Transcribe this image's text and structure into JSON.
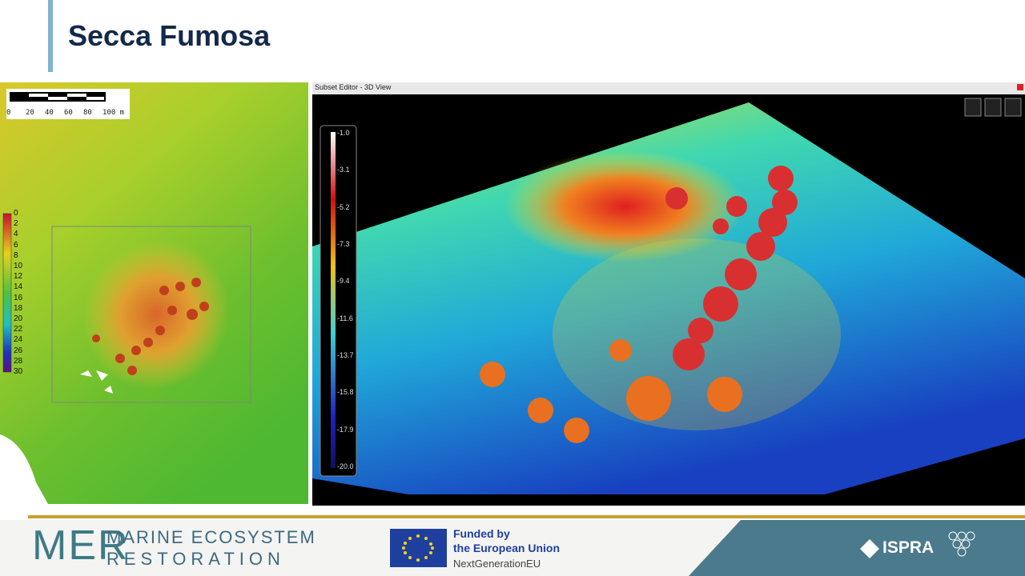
{
  "header": {
    "title": "Secca Fumosa"
  },
  "left_panel": {
    "scale_labels": [
      "0",
      "20",
      "40",
      "60",
      "80",
      "100 m"
    ],
    "legend_labels": [
      "0",
      "2",
      "4",
      "6",
      "8",
      "10",
      "12",
      "14",
      "16",
      "18",
      "20",
      "22",
      "24",
      "26",
      "28",
      "30"
    ]
  },
  "right_panel": {
    "window_title": "Subset Editor - 3D View",
    "legend_labels": [
      "-1.0",
      "-3.1",
      "-5.2",
      "-7.3",
      "-9.4",
      "-11.6",
      "-13.7",
      "-15.8",
      "-17.9",
      "-20.0"
    ]
  },
  "footer": {
    "logo": "MER",
    "project_line1": "MARINE ECOSYSTEM",
    "project_line2": "RESTORATION",
    "funding_line1": "Funded by",
    "funding_line2": "the European Union",
    "funding_line3": "NextGenerationEU",
    "partner": "ISPRA"
  }
}
